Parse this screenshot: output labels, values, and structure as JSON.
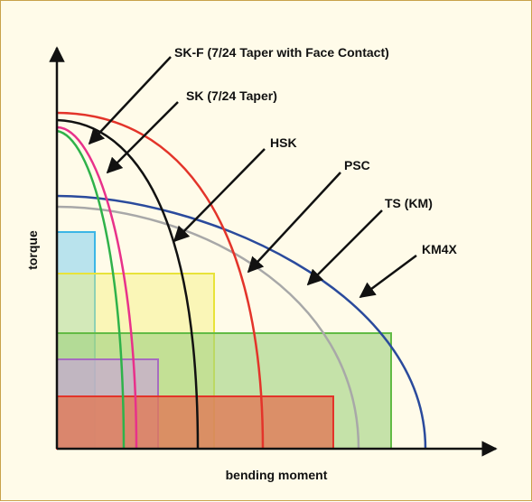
{
  "axes": {
    "x_label": "bending moment",
    "y_label": "torque"
  },
  "labels": {
    "skf": "SK-F (7/24 Taper with Face Contact)",
    "sk": "SK (7/24 Taper)",
    "hsk": "HSK",
    "psc": "PSC",
    "ts": "TS (KM)",
    "km4x": "KM4X"
  },
  "colors": {
    "sk": "#2fb24a",
    "skf": "#e8318a",
    "hsk": "#111111",
    "psc": "#e3342a",
    "ts": "#a8a8a8",
    "km4x": "#2a4a9c",
    "box_cyan": "#7fcff0",
    "box_yellow": "#f3f07a",
    "box_green": "#9ed27e",
    "box_purple": "#b08ac9",
    "box_red": "#e07a58"
  }
}
